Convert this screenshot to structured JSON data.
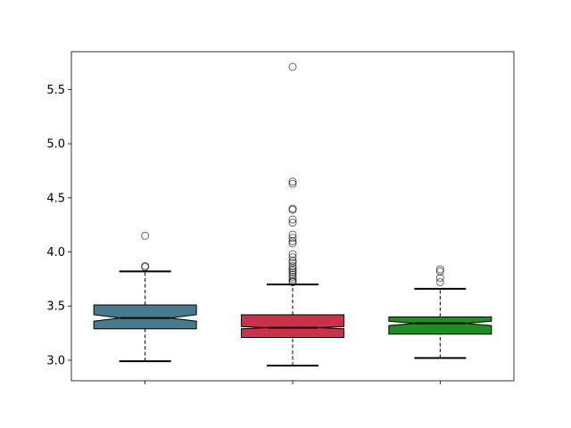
{
  "chart_data": {
    "type": "boxplot",
    "title": "",
    "xlabel": "",
    "ylabel": "",
    "notched": true,
    "grid": false,
    "ylim": [
      2.81,
      5.85
    ],
    "yticks": [
      3.0,
      3.5,
      4.0,
      4.5,
      5.0,
      5.5
    ],
    "ytick_labels": [
      "3.0",
      "3.5",
      "4.0",
      "4.5",
      "5.0",
      "5.5"
    ],
    "categories": [
      "",
      "",
      ""
    ],
    "boxes": [
      {
        "color": "#457b8d",
        "whisker_low": 2.99,
        "q1": 3.29,
        "median": 3.39,
        "q3": 3.51,
        "whisker_high": 3.82,
        "notch_low": 3.36,
        "notch_high": 3.42,
        "outliers": [
          4.15,
          3.87,
          3.86
        ]
      },
      {
        "color": "#c8334a",
        "whisker_low": 2.95,
        "q1": 3.21,
        "median": 3.3,
        "q3": 3.42,
        "whisker_high": 3.7,
        "notch_low": 3.29,
        "notch_high": 3.31,
        "outliers": [
          5.71,
          4.65,
          4.63,
          4.4,
          4.39,
          4.3,
          4.27,
          4.16,
          4.13,
          4.1,
          4.08,
          3.98,
          3.95,
          3.92,
          3.9,
          3.87,
          3.85,
          3.83,
          3.81,
          3.79,
          3.77,
          3.75,
          3.73,
          3.72
        ]
      },
      {
        "color": "#228b22",
        "whisker_low": 3.02,
        "q1": 3.24,
        "median": 3.34,
        "q3": 3.4,
        "whisker_high": 3.66,
        "notch_low": 3.32,
        "notch_high": 3.36,
        "outliers": [
          3.84,
          3.82,
          3.76,
          3.72
        ]
      }
    ]
  }
}
